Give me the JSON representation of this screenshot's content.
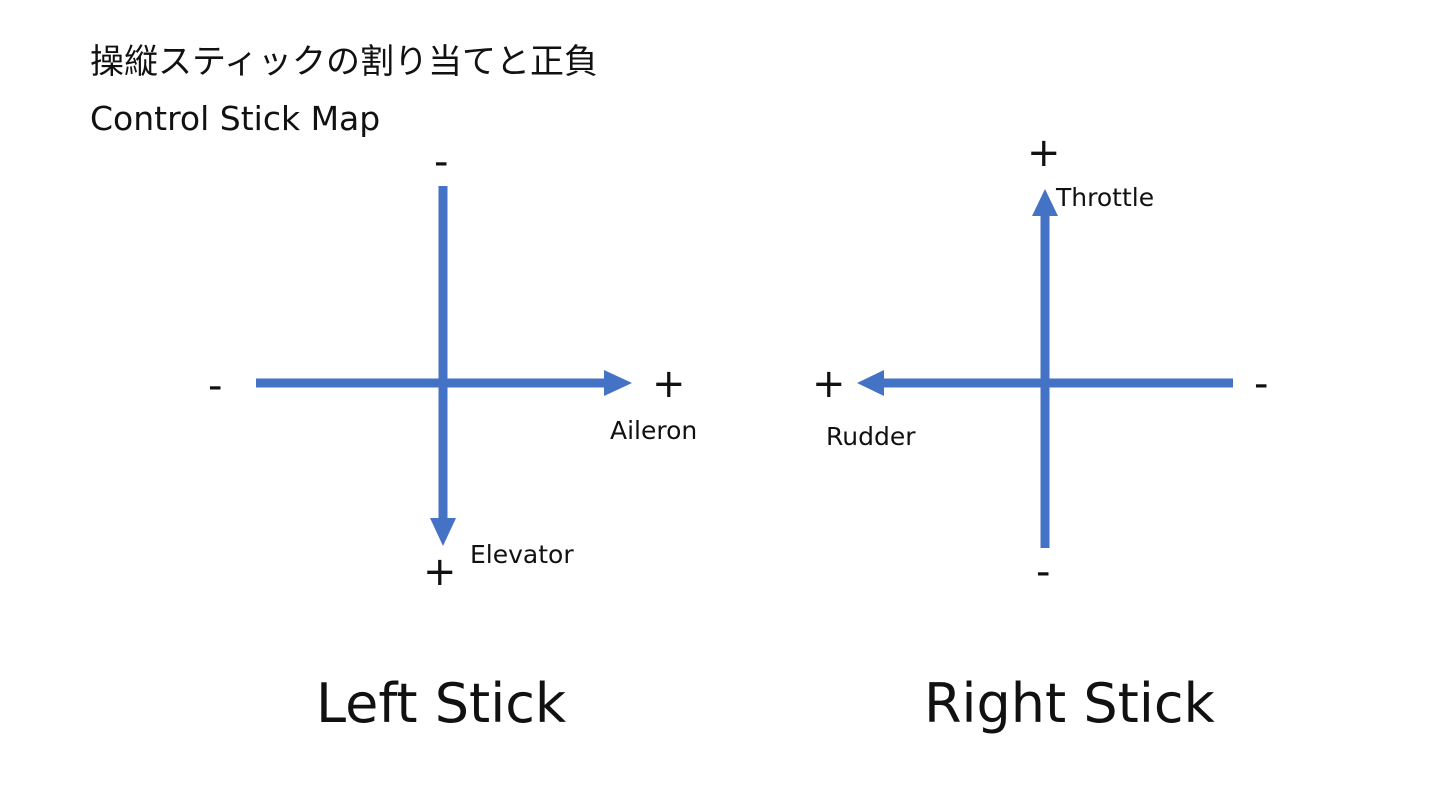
{
  "title": {
    "japanese": "操縦スティックの割り当てと正負",
    "english": "Control Stick Map"
  },
  "colors": {
    "arrow": "#4472C4",
    "text": "#111111",
    "background": "#ffffff"
  },
  "left_stick": {
    "title": "Left Stick",
    "vertical_axis": {
      "name": "Elevator",
      "top_sign": "-",
      "bottom_sign": "+",
      "arrow_direction": "down"
    },
    "horizontal_axis": {
      "name": "Aileron",
      "left_sign": "-",
      "right_sign": "+",
      "arrow_direction": "right"
    }
  },
  "right_stick": {
    "title": "Right Stick",
    "vertical_axis": {
      "name": "Throttle",
      "top_sign": "+",
      "bottom_sign": "-",
      "arrow_direction": "up"
    },
    "horizontal_axis": {
      "name": "Rudder",
      "left_sign": "+",
      "right_sign": "-",
      "arrow_direction": "left"
    }
  }
}
